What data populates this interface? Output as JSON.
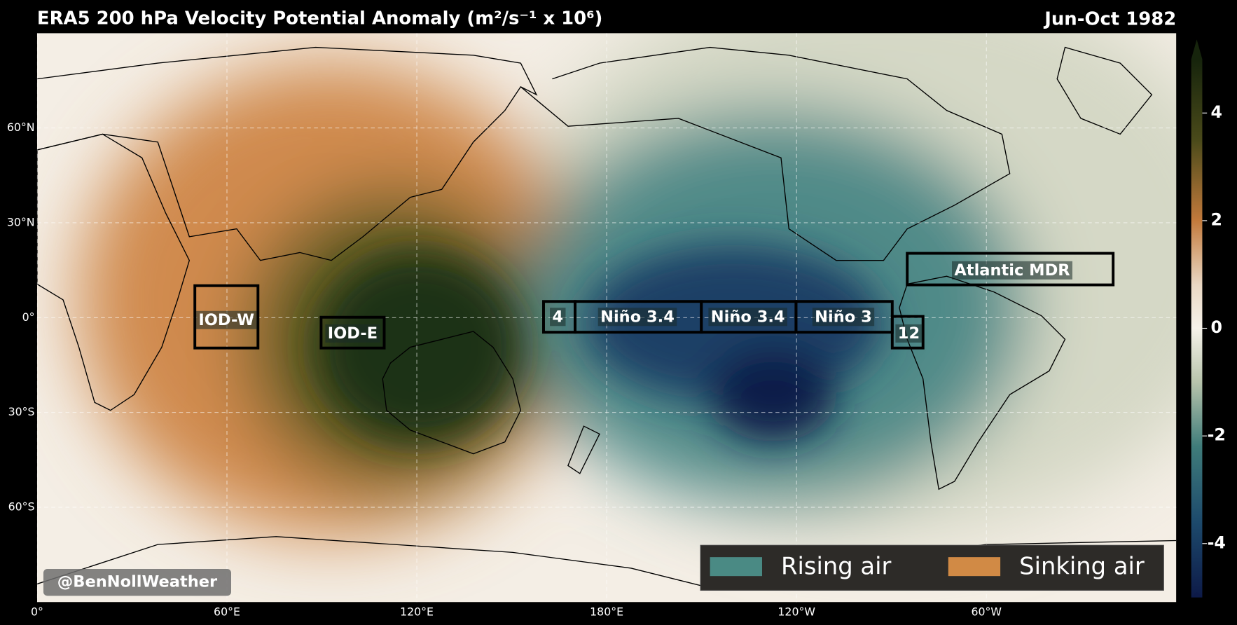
{
  "header": {
    "title": "ERA5 200 hPa Velocity Potential Anomaly (m²/s⁻¹ x 10⁶)",
    "period": "Jun-Oct 1982"
  },
  "map": {
    "lon_range": [
      0,
      360
    ],
    "lat_range": [
      -90,
      90
    ],
    "lon_ticks": [
      {
        "value": 0,
        "label": "0°"
      },
      {
        "value": 60,
        "label": "60°E"
      },
      {
        "value": 120,
        "label": "120°E"
      },
      {
        "value": 180,
        "label": "180°E"
      },
      {
        "value": 240,
        "label": "120°W"
      },
      {
        "value": 300,
        "label": "60°W"
      }
    ],
    "lat_ticks": [
      {
        "value": 60,
        "label": "60°N"
      },
      {
        "value": 30,
        "label": "30°N"
      },
      {
        "value": 0,
        "label": "0°"
      },
      {
        "value": -30,
        "label": "30°S"
      },
      {
        "value": -60,
        "label": "60°S"
      }
    ],
    "regions": [
      "IOD-W",
      "IOD-E",
      "4",
      "Niño 3.4",
      "Niño 3.4",
      "Niño 3",
      "12",
      "Atlantic MDR"
    ]
  },
  "colorbar": {
    "range": [
      -5,
      5
    ],
    "ticks": [
      4,
      2,
      0,
      -2,
      -4
    ]
  },
  "legend": [
    {
      "name": "Rising air",
      "color": "#4a8a84"
    },
    {
      "name": "Sinking air",
      "color": "#d18a45"
    }
  ],
  "credit": "@BenNollWeather"
}
